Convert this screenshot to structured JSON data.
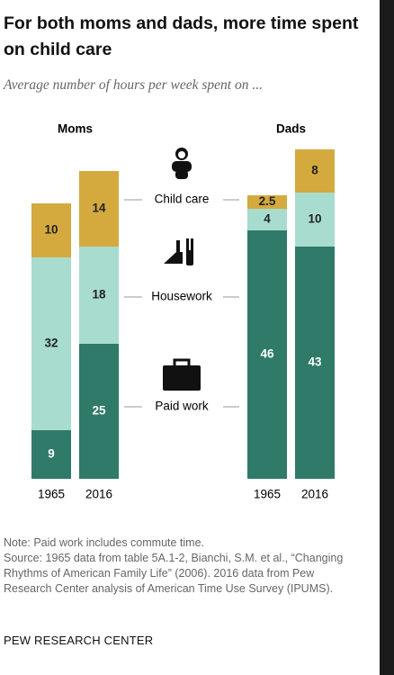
{
  "chart_data": {
    "type": "bar",
    "stacked": true,
    "title": "For both moms and dads, more time spent on child care",
    "subtitle": "Average number of hours per week spent on ...",
    "panels": [
      "Moms",
      "Dads"
    ],
    "categories": [
      "1965",
      "2016",
      "1965",
      "2016"
    ],
    "series": [
      {
        "name": "Paid work",
        "color": "#2f7a68",
        "values": [
          9,
          25,
          46,
          43
        ]
      },
      {
        "name": "Housework",
        "color": "#a8dccf",
        "values": [
          32,
          18,
          4,
          10
        ]
      },
      {
        "name": "Child care",
        "color": "#d4aa3e",
        "values": [
          10,
          14,
          2.5,
          8
        ]
      }
    ],
    "note": "Note: Paid work includes commute time.",
    "source": "Source: 1965 data from table 5A.1-2, Bianchi, S.M. et al., “Changing Rhythms of American Family Life” (2006). 2016 data from Pew Research Center analysis of American Time Use Survey (IPUMS).",
    "credit": "PEW RESEARCH CENTER"
  }
}
